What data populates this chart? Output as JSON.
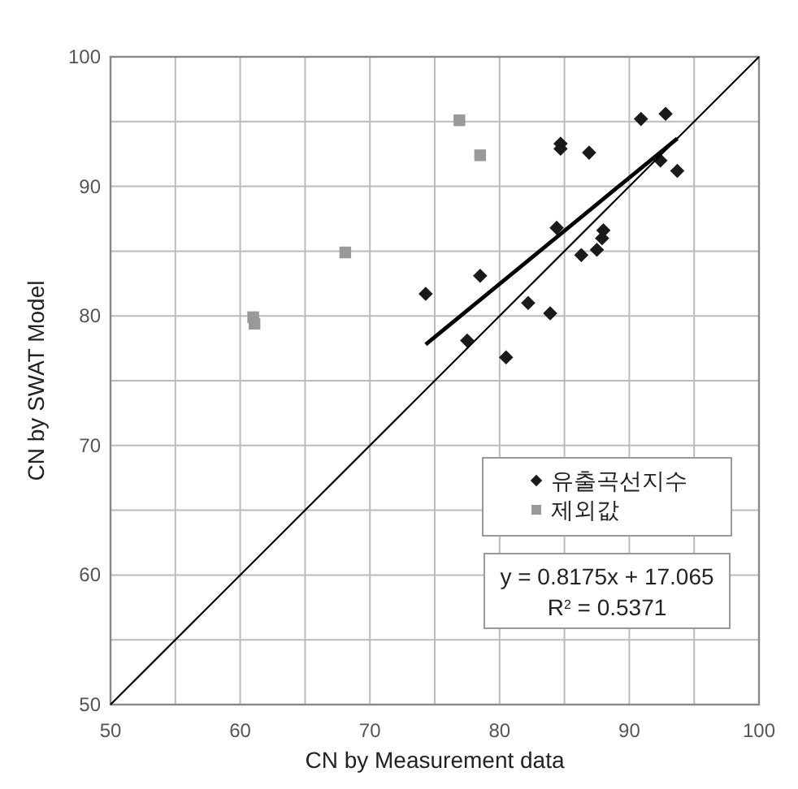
{
  "chart_data": {
    "type": "scatter",
    "xlabel": "CN  by  Measurement data",
    "ylabel": "CN  by  SWAT Model",
    "xlim": [
      50,
      100
    ],
    "ylim": [
      50,
      100
    ],
    "xticks": [
      50,
      {
        "value": 55,
        "label": null
      },
      60,
      {
        "value": 65,
        "label": null
      },
      70,
      {
        "value": 75,
        "label": null
      },
      80,
      {
        "value": 85,
        "label": null
      },
      90,
      {
        "value": 95,
        "label": null
      },
      100
    ],
    "yticks": [
      50,
      {
        "value": 55,
        "label": null
      },
      60,
      {
        "value": 65,
        "label": null
      },
      70,
      {
        "value": 75,
        "label": null
      },
      80,
      {
        "value": 85,
        "label": null
      },
      90,
      {
        "value": 95,
        "label": null
      },
      100
    ],
    "grid": true,
    "legend": "right",
    "series": [
      {
        "name": "유출곡선지수",
        "color": "#1a1a1a",
        "marker": "diamond",
        "x": [
          74.3,
          77.5,
          78.5,
          80.5,
          82.2,
          83.9,
          84.4,
          84.7,
          84.7,
          86.3,
          86.9,
          87.5,
          87.9,
          88.0,
          90.9,
          92.4,
          92.8,
          93.7
        ],
        "values": [
          81.7,
          78.1,
          83.1,
          76.8,
          81.0,
          80.2,
          86.8,
          93.3,
          92.9,
          84.7,
          92.6,
          85.1,
          86.0,
          86.6,
          95.2,
          92.0,
          95.6,
          91.2
        ]
      },
      {
        "name": "제외값",
        "color": "#999999",
        "marker": "square",
        "x": [
          76.9,
          78.5,
          68.1,
          61.0,
          61.1
        ],
        "values": [
          95.1,
          92.4,
          84.9,
          79.9,
          79.4
        ]
      },
      {
        "type": "line",
        "color": "#000000",
        "x": [
          74.3,
          93.7
        ],
        "values": [
          77.8,
          93.7
        ]
      },
      {
        "type": "line",
        "color": "#000000",
        "x": [
          50,
          100
        ],
        "values": [
          50,
          100
        ]
      }
    ],
    "annotations": [
      "y = 0.8175x + 17.065",
      "R$^{2}$ = 0.5371"
    ]
  }
}
